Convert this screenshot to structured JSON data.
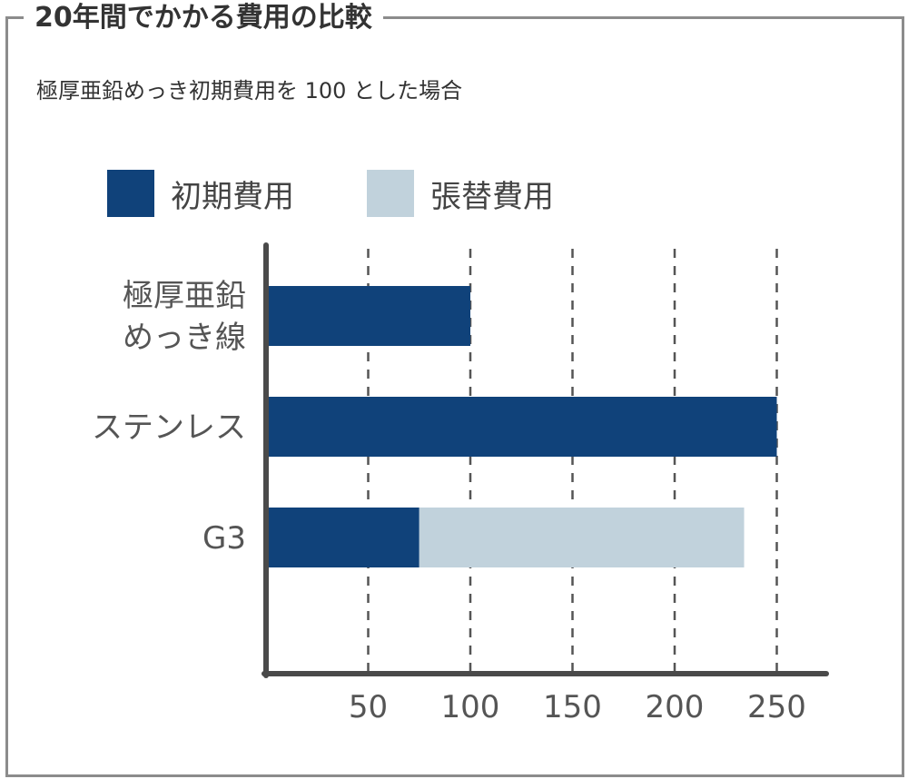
{
  "title": "20年間でかかる費用の比較",
  "subtitle": "極厚亜鉛めっき初期費用を 100 とした場合",
  "colors": {
    "initial": "#10427a",
    "replacement": "#c1d2dc",
    "axis": "#4a4a4a",
    "grid": "#555555",
    "frame": "#8c8c8c"
  },
  "chart_data": {
    "type": "bar",
    "orientation": "horizontal",
    "stacked": true,
    "categories": [
      [
        "極厚亜鉛",
        "めっき線"
      ],
      [
        "ステンレス"
      ],
      [
        "G3"
      ]
    ],
    "series": [
      {
        "name": "初期費用",
        "color": "#10427a",
        "values": [
          100,
          250,
          75
        ]
      },
      {
        "name": "張替費用",
        "color": "#c1d2dc",
        "values": [
          0,
          0,
          159
        ]
      }
    ],
    "xticks": [
      50,
      100,
      150,
      200,
      250
    ],
    "xlim": [
      0,
      275
    ],
    "grid": "vertical-dashed",
    "legend": "top-left"
  }
}
